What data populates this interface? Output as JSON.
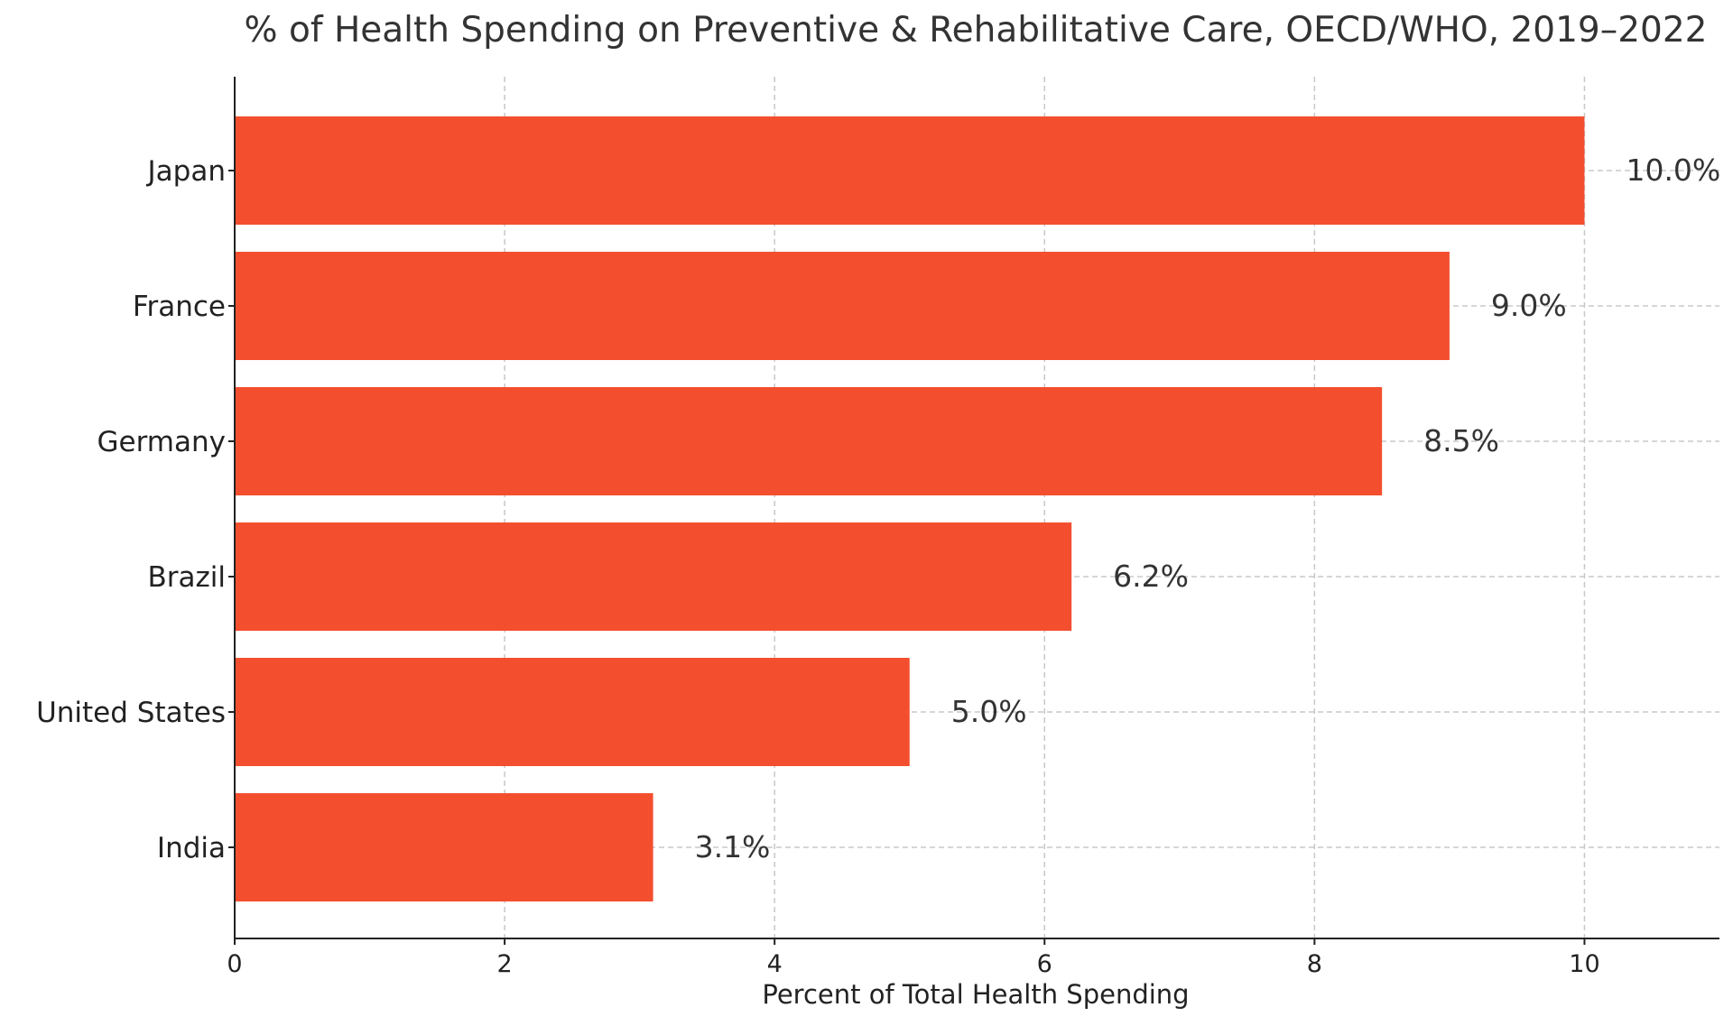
{
  "chart_data": {
    "type": "bar",
    "orientation": "horizontal",
    "title": "% of Health Spending on Preventive & Rehabilitative Care, OECD/WHO, 2019–2022",
    "xlabel": "Percent of Total Health Spending",
    "ylabel": "",
    "categories": [
      "Japan",
      "France",
      "Germany",
      "Brazil",
      "United States",
      "India"
    ],
    "values": [
      10.0,
      9.0,
      8.5,
      6.2,
      5.0,
      3.1
    ],
    "data_labels": [
      "10.0%",
      "9.0%",
      "8.5%",
      "6.2%",
      "5.0%",
      "3.1%"
    ],
    "xlim": [
      0,
      11
    ],
    "xticks": [
      0,
      2,
      4,
      6,
      8,
      10
    ],
    "xtick_labels": [
      "0",
      "2",
      "4",
      "6",
      "8",
      "10"
    ],
    "grid": true,
    "bar_color": "#f34f2f"
  }
}
